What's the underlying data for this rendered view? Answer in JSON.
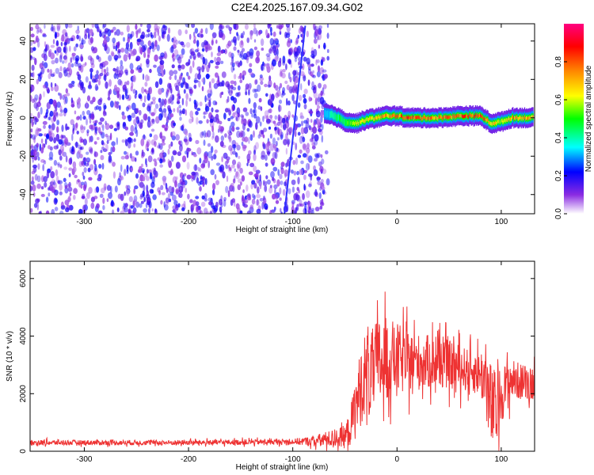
{
  "title": "C2E4.2025.167.09.34.G02",
  "chart_data": [
    {
      "type": "heatmap",
      "xlabel": "Height of straight line (km)",
      "ylabel": "Frequency (Hz)",
      "xlim": [
        -352,
        132
      ],
      "ylim": [
        -50,
        49
      ],
      "xticks": [
        -300,
        -200,
        -100,
        0,
        100
      ],
      "yticks": [
        -40,
        -20,
        0,
        20,
        40
      ],
      "colorbar": {
        "label": "Normalized spectral amplitude",
        "range": [
          0,
          1
        ],
        "ticks": [
          "0.0",
          "0.2",
          "0.4",
          "0.6",
          "0.8"
        ],
        "colors": [
          "#ffffff",
          "#8a2be2",
          "#0000ff",
          "#00ffff",
          "#00ff00",
          "#ffff00",
          "#ff8800",
          "#ff0000",
          "#ff0080"
        ]
      },
      "noise_region_x": [
        -352,
        -70
      ],
      "noise_mean_amplitude": 0.15,
      "signal_band": {
        "x": [
          -70,
          -60,
          -50,
          -40,
          -30,
          -20,
          -10,
          0,
          10,
          20,
          40,
          60,
          80,
          90,
          100,
          110,
          130
        ],
        "freq_center": [
          2,
          1,
          -2,
          -3,
          -1,
          0,
          1,
          1,
          0,
          0,
          0,
          1,
          1,
          -3,
          -2,
          0,
          0
        ],
        "amplitude": [
          0.3,
          0.45,
          0.5,
          0.6,
          0.65,
          0.7,
          0.75,
          0.8,
          0.85,
          0.8,
          0.75,
          0.8,
          0.85,
          0.7,
          0.6,
          0.75,
          0.7
        ]
      },
      "chirp": {
        "x": [
          -108,
          -88
        ],
        "freq": [
          -50,
          48
        ]
      }
    },
    {
      "type": "line",
      "xlabel": "Height of straight line (km)",
      "ylabel": "SNR (10 * v/v)",
      "xlim": [
        -352,
        132
      ],
      "ylim": [
        0,
        6600
      ],
      "xticks": [
        -300,
        -200,
        -100,
        0,
        100
      ],
      "yticks": [
        0,
        2000,
        4000,
        6000
      ],
      "color": "#ee3333",
      "envelope": {
        "x": [
          -352,
          -300,
          -200,
          -100,
          -80,
          -70,
          -60,
          -50,
          -45,
          -40,
          -35,
          -30,
          -25,
          -20,
          -15,
          -10,
          0,
          10,
          20,
          40,
          60,
          70,
          80,
          85,
          90,
          95,
          100,
          110,
          120,
          132
        ],
        "mean": [
          300,
          300,
          300,
          330,
          350,
          400,
          450,
          500,
          800,
          1500,
          2200,
          2800,
          2600,
          3000,
          3100,
          3200,
          3200,
          3100,
          3100,
          3100,
          2900,
          2800,
          2700,
          2500,
          1500,
          1400,
          2000,
          2500,
          2400,
          2400
        ],
        "spread": [
          100,
          100,
          100,
          110,
          200,
          300,
          350,
          450,
          700,
          1200,
          1500,
          1600,
          1700,
          1700,
          1800,
          1600,
          1400,
          1200,
          1100,
          1000,
          900,
          800,
          900,
          1400,
          1800,
          1500,
          1100,
          800,
          700,
          700
        ]
      }
    }
  ]
}
